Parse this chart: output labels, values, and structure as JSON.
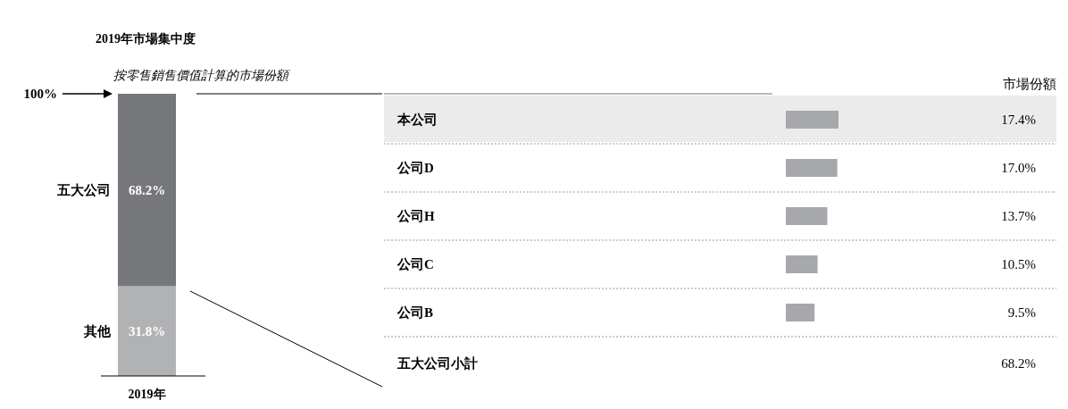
{
  "chart_data": [
    {
      "type": "bar",
      "stacked": true,
      "title": "2019年市場集中度",
      "subtitle": "按零售銷售價值計算的市場份額",
      "categories": [
        "2019年"
      ],
      "ylim": [
        0,
        100
      ],
      "series": [
        {
          "name": "其他",
          "color": "#b1b2b4",
          "values": [
            31.8
          ],
          "value_labels": [
            "31.8%"
          ]
        },
        {
          "name": "五大公司",
          "color": "#76777b",
          "values": [
            68.2
          ],
          "value_labels": [
            "68.2%"
          ]
        }
      ],
      "annotations": [
        "100%"
      ]
    },
    {
      "type": "bar",
      "orientation": "horizontal",
      "categories": [
        "本公司",
        "公司D",
        "公司H",
        "公司C",
        "公司B"
      ],
      "color": "#a7a8ab",
      "values": [
        17.4,
        17.0,
        13.7,
        10.5,
        9.5
      ],
      "value_labels": [
        "17.4%",
        "17.0%",
        "13.7%",
        "10.5%",
        "9.5%"
      ],
      "annotations": [
        "市場份額",
        "五大公司小計",
        "68.2%"
      ]
    }
  ]
}
